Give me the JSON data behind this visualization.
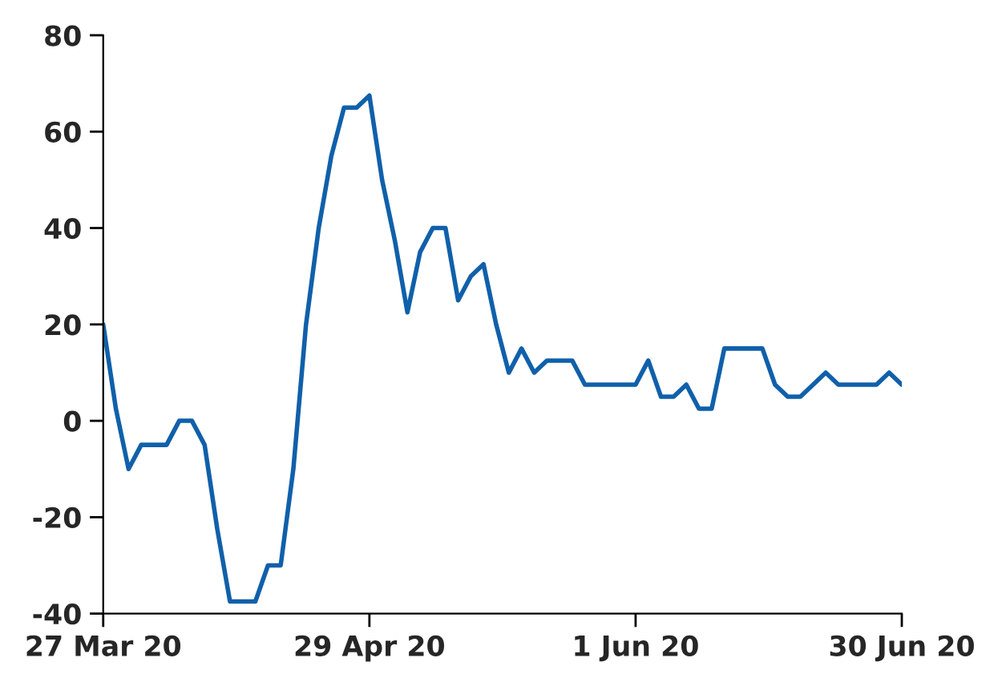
{
  "chart_data": {
    "type": "line",
    "categories": [
      "27 Mar 20",
      null,
      null,
      null,
      null,
      null,
      null,
      null,
      null,
      null,
      null,
      null,
      null,
      null,
      null,
      null,
      null,
      null,
      null,
      null,
      null,
      "29 Apr 20",
      null,
      null,
      null,
      null,
      null,
      null,
      null,
      null,
      null,
      null,
      null,
      null,
      null,
      null,
      null,
      null,
      null,
      null,
      null,
      null,
      "1 Jun 20",
      null,
      null,
      null,
      null,
      null,
      null,
      null,
      null,
      null,
      null,
      null,
      null,
      null,
      null,
      null,
      null,
      null,
      null,
      null,
      null,
      "30 Jun 20"
    ],
    "series": [
      {
        "color": "#1060aa",
        "values": [
          20,
          2.5,
          -10,
          -5,
          -5,
          -5,
          0,
          0,
          -5,
          -22.5,
          -37.5,
          -37.5,
          -37.5,
          -30,
          -30,
          -10,
          20,
          40,
          55,
          65,
          65,
          67.5,
          50,
          37.5,
          22.5,
          35,
          40,
          40,
          25,
          30,
          32.5,
          20,
          10,
          15,
          10,
          12.5,
          12.5,
          12.5,
          7.5,
          7.5,
          7.5,
          7.5,
          7.5,
          12.5,
          5,
          5,
          7.5,
          2.5,
          2.5,
          15,
          15,
          15,
          15,
          7.5,
          5,
          5,
          7.5,
          10,
          7.5,
          7.5,
          7.5,
          7.5,
          10,
          7.5
        ]
      }
    ],
    "ylim": [
      -40,
      80
    ],
    "yticks": [
      -40,
      -20,
      0,
      20,
      40,
      60,
      80
    ],
    "grid": false,
    "legend": false,
    "marker": "none",
    "line_style": "solid"
  }
}
